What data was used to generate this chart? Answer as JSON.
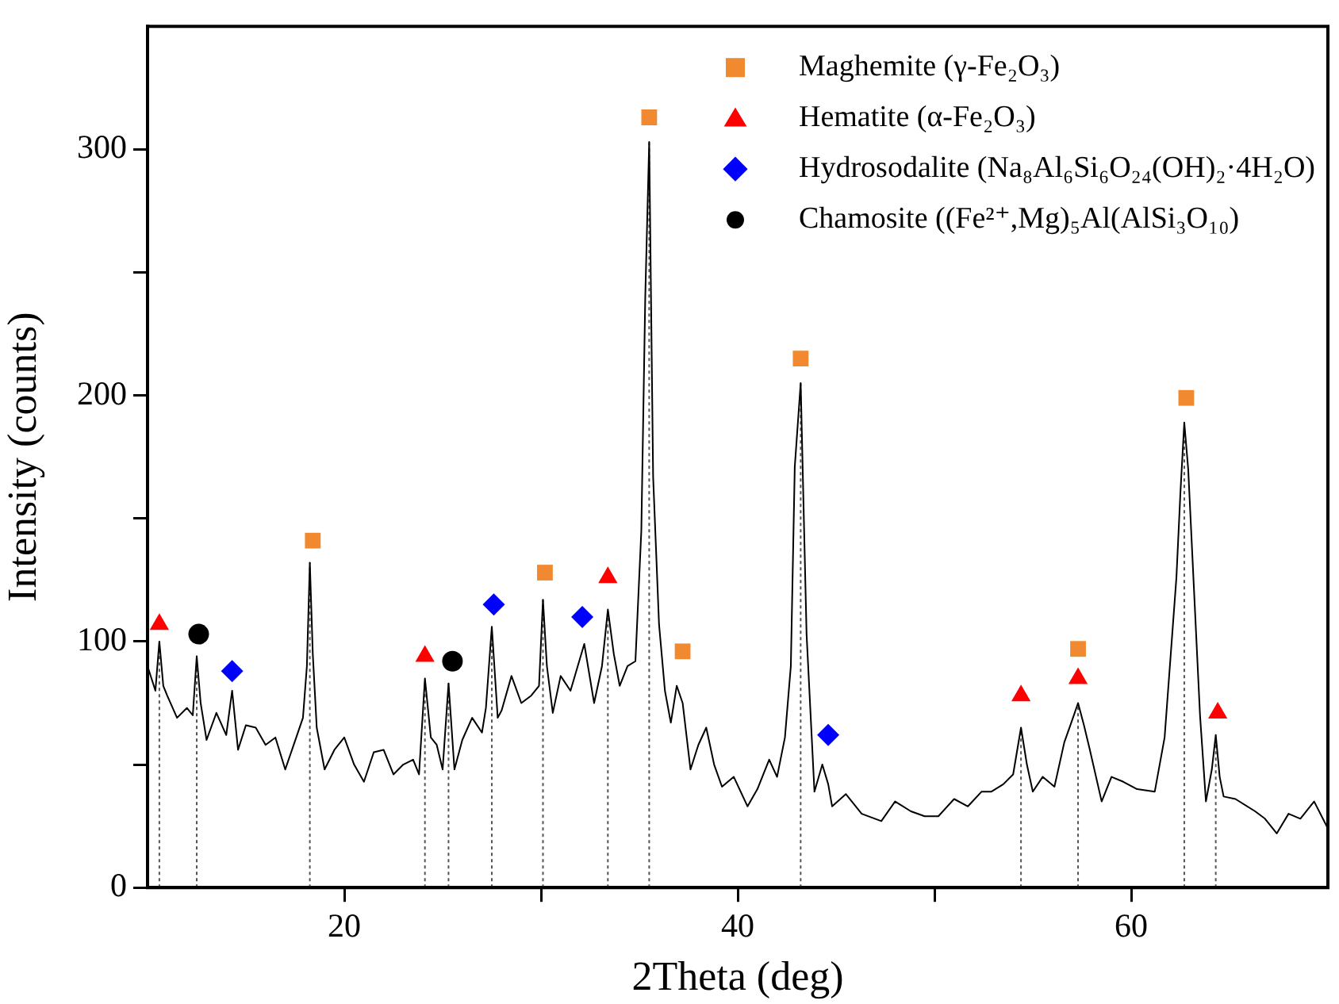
{
  "chart_data": {
    "type": "line",
    "xlabel": "2Theta (deg)",
    "ylabel": "Intensity (counts)",
    "xlim": [
      10,
      70
    ],
    "ylim": [
      0,
      350
    ],
    "xticks": [
      20,
      {
        "value": 30,
        "label": null
      },
      40,
      {
        "value": 50,
        "label": null
      },
      60
    ],
    "yticks": [
      0,
      {
        "value": 50,
        "label": null
      },
      100,
      {
        "value": 150,
        "label": null
      },
      200,
      {
        "value": 250,
        "label": null
      },
      300
    ],
    "grid": false,
    "legend": "top right",
    "line_style": "solid",
    "series": [
      {
        "color": "#000000",
        "marker": "none",
        "x": [
          10,
          10.4,
          10.6,
          10.8,
          11,
          11.5,
          12,
          12.3,
          12.5,
          12.7,
          13,
          13.5,
          14,
          14.3,
          14.6,
          15,
          15.5,
          16,
          16.5,
          17,
          17.6,
          17.9,
          18.1,
          18.25,
          18.4,
          18.6,
          19,
          19.5,
          20,
          20.5,
          21,
          21.5,
          22,
          22.5,
          23,
          23.5,
          23.8,
          24.1,
          24.4,
          24.7,
          25,
          25.3,
          25.6,
          26,
          26.5,
          27,
          27.2,
          27.5,
          27.8,
          28,
          28.5,
          29,
          29.5,
          29.9,
          30.1,
          30.3,
          30.6,
          31,
          31.5,
          32.2,
          32.7,
          33.1,
          33.4,
          33.7,
          34,
          34.4,
          34.8,
          35.1,
          35.3,
          35.5,
          35.7,
          36,
          36.3,
          36.6,
          36.9,
          37.2,
          37.6,
          38,
          38.4,
          38.8,
          39.2,
          39.8,
          40.5,
          41,
          41.6,
          42,
          42.4,
          42.7,
          42.9,
          43.2,
          43.5,
          43.9,
          44.3,
          44.6,
          44.8,
          45.5,
          46.3,
          47.3,
          48,
          48.8,
          49.5,
          50.2,
          51,
          51.7,
          52.4,
          52.9,
          53.5,
          54,
          54.4,
          54.7,
          55,
          55.5,
          56.1,
          56.6,
          57,
          57.3,
          57.6,
          57.9,
          58.5,
          59,
          59.6,
          60.3,
          61.2,
          61.7,
          62.3,
          62.5,
          62.7,
          62.9,
          63.2,
          63.5,
          63.8,
          64.1,
          64.3,
          64.5,
          64.7,
          65.3,
          66.3,
          66.8,
          67.4,
          68,
          68.6,
          69.3,
          70
        ],
        "values": [
          90,
          80,
          100,
          82,
          78,
          69,
          73,
          70,
          94,
          75,
          60,
          71,
          62,
          80,
          56,
          66,
          65,
          58,
          61,
          48,
          62,
          69,
          90,
          132,
          95,
          65,
          48,
          56,
          61,
          50,
          43,
          55,
          56,
          46,
          50,
          52,
          46,
          85,
          61,
          58,
          48,
          83,
          48,
          60,
          69,
          63,
          73,
          106,
          69,
          72,
          86,
          75,
          78,
          82,
          117,
          90,
          71,
          86,
          80,
          99,
          75,
          90,
          113,
          95,
          82,
          90,
          92,
          145,
          240,
          303,
          167,
          107,
          80,
          67,
          82,
          75,
          48,
          58,
          65,
          50,
          41,
          45,
          33,
          40,
          52,
          45,
          61,
          90,
          171,
          205,
          103,
          39,
          50,
          42,
          33,
          38,
          30,
          27,
          35,
          31,
          29,
          29,
          36,
          33,
          39,
          39,
          42,
          46,
          65,
          50,
          39,
          45,
          41,
          59,
          68,
          75,
          66,
          56,
          35,
          45,
          43,
          40,
          39,
          61,
          126,
          160,
          189,
          170,
          120,
          70,
          35,
          48,
          62,
          45,
          37,
          36,
          31,
          28,
          22,
          30,
          28,
          35,
          24
        ]
      },
      {
        "type": "scatter",
        "name": "Maghemite (γ-Fe₂O₃)",
        "color": "#f0892f",
        "marker": "square",
        "x": [
          18.4,
          30.2,
          35.5,
          37.2,
          43.2,
          57.3,
          62.8
        ],
        "values": [
          141,
          128,
          313,
          96,
          215,
          97,
          199
        ]
      },
      {
        "type": "scatter",
        "name": "Hematite (α-Fe₂O₃)",
        "color": "#ff0000",
        "marker": "triangle",
        "x": [
          10.6,
          24.1,
          33.4,
          54.4,
          57.3,
          64.4
        ],
        "values": [
          107,
          94,
          126,
          78,
          85,
          71
        ]
      },
      {
        "type": "scatter",
        "name": "Hydrosodalite (Na₈Al₆Si₆O₂₄(OH)₂·4H₂O)",
        "color": "#0000ff",
        "marker": "diamond",
        "x": [
          14.3,
          27.6,
          32.1,
          44.6
        ],
        "values": [
          88,
          115,
          110,
          62
        ]
      },
      {
        "type": "scatter",
        "name": "Chamosite ((Fe²⁺,Mg)₅Al(AlSi₃O₁₀)",
        "color": "#000000",
        "marker": "circle",
        "x": [
          12.6,
          25.5
        ],
        "values": [
          103,
          92
        ]
      }
    ],
    "ref_lines": [
      {
        "axis": "x",
        "value": 10.6,
        "color": "#555555",
        "line_style": "dotted"
      },
      {
        "axis": "x",
        "value": 12.5,
        "color": "#555555",
        "line_style": "dotted"
      },
      {
        "axis": "x",
        "value": 18.25,
        "color": "#555555",
        "line_style": "dotted"
      },
      {
        "axis": "x",
        "value": 24.1,
        "color": "#555555",
        "line_style": "dotted"
      },
      {
        "axis": "x",
        "value": 25.3,
        "color": "#555555",
        "line_style": "dotted"
      },
      {
        "axis": "x",
        "value": 27.5,
        "color": "#555555",
        "line_style": "dotted"
      },
      {
        "axis": "x",
        "value": 30.1,
        "color": "#555555",
        "line_style": "dotted"
      },
      {
        "axis": "x",
        "value": 33.4,
        "color": "#555555",
        "line_style": "dotted"
      },
      {
        "axis": "x",
        "value": 35.5,
        "color": "#555555",
        "line_style": "dotted"
      },
      {
        "axis": "x",
        "value": 43.2,
        "color": "#555555",
        "line_style": "dotted"
      },
      {
        "axis": "x",
        "value": 54.4,
        "color": "#555555",
        "line_style": "dotted"
      },
      {
        "axis": "x",
        "value": 57.3,
        "color": "#555555",
        "line_style": "dotted"
      },
      {
        "axis": "x",
        "value": 62.7,
        "color": "#555555",
        "line_style": "dotted"
      },
      {
        "axis": "x",
        "value": 64.3,
        "color": "#555555",
        "line_style": "dotted"
      }
    ]
  }
}
